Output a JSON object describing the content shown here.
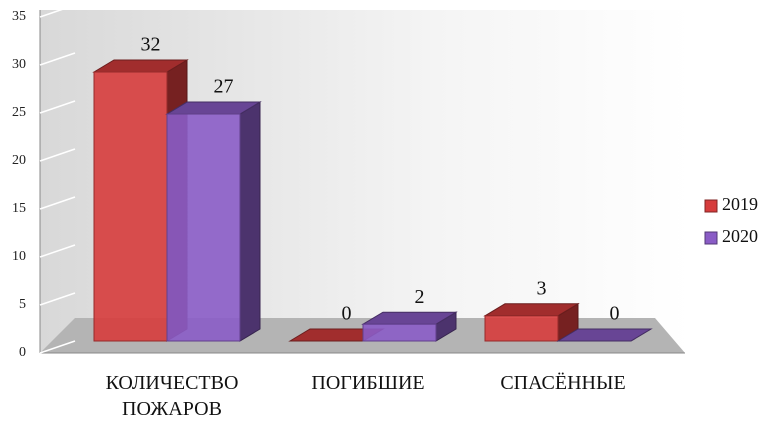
{
  "chart_data": {
    "type": "bar3d",
    "categories": [
      "КОЛИЧЕСТВО ПОЖАРОВ",
      "ПОГИБШИЕ",
      "СПАСЁННЫЕ"
    ],
    "series": [
      {
        "name": "2019",
        "color": "#d63c3c",
        "values": [
          32,
          0,
          3
        ]
      },
      {
        "name": "2020",
        "color": "#8a5cc6",
        "values": [
          27,
          2,
          0
        ]
      }
    ],
    "ylim": [
      0,
      35
    ],
    "yticks": [
      0,
      5,
      10,
      15,
      20,
      25,
      30,
      35
    ],
    "grid": true,
    "legend": "right"
  }
}
